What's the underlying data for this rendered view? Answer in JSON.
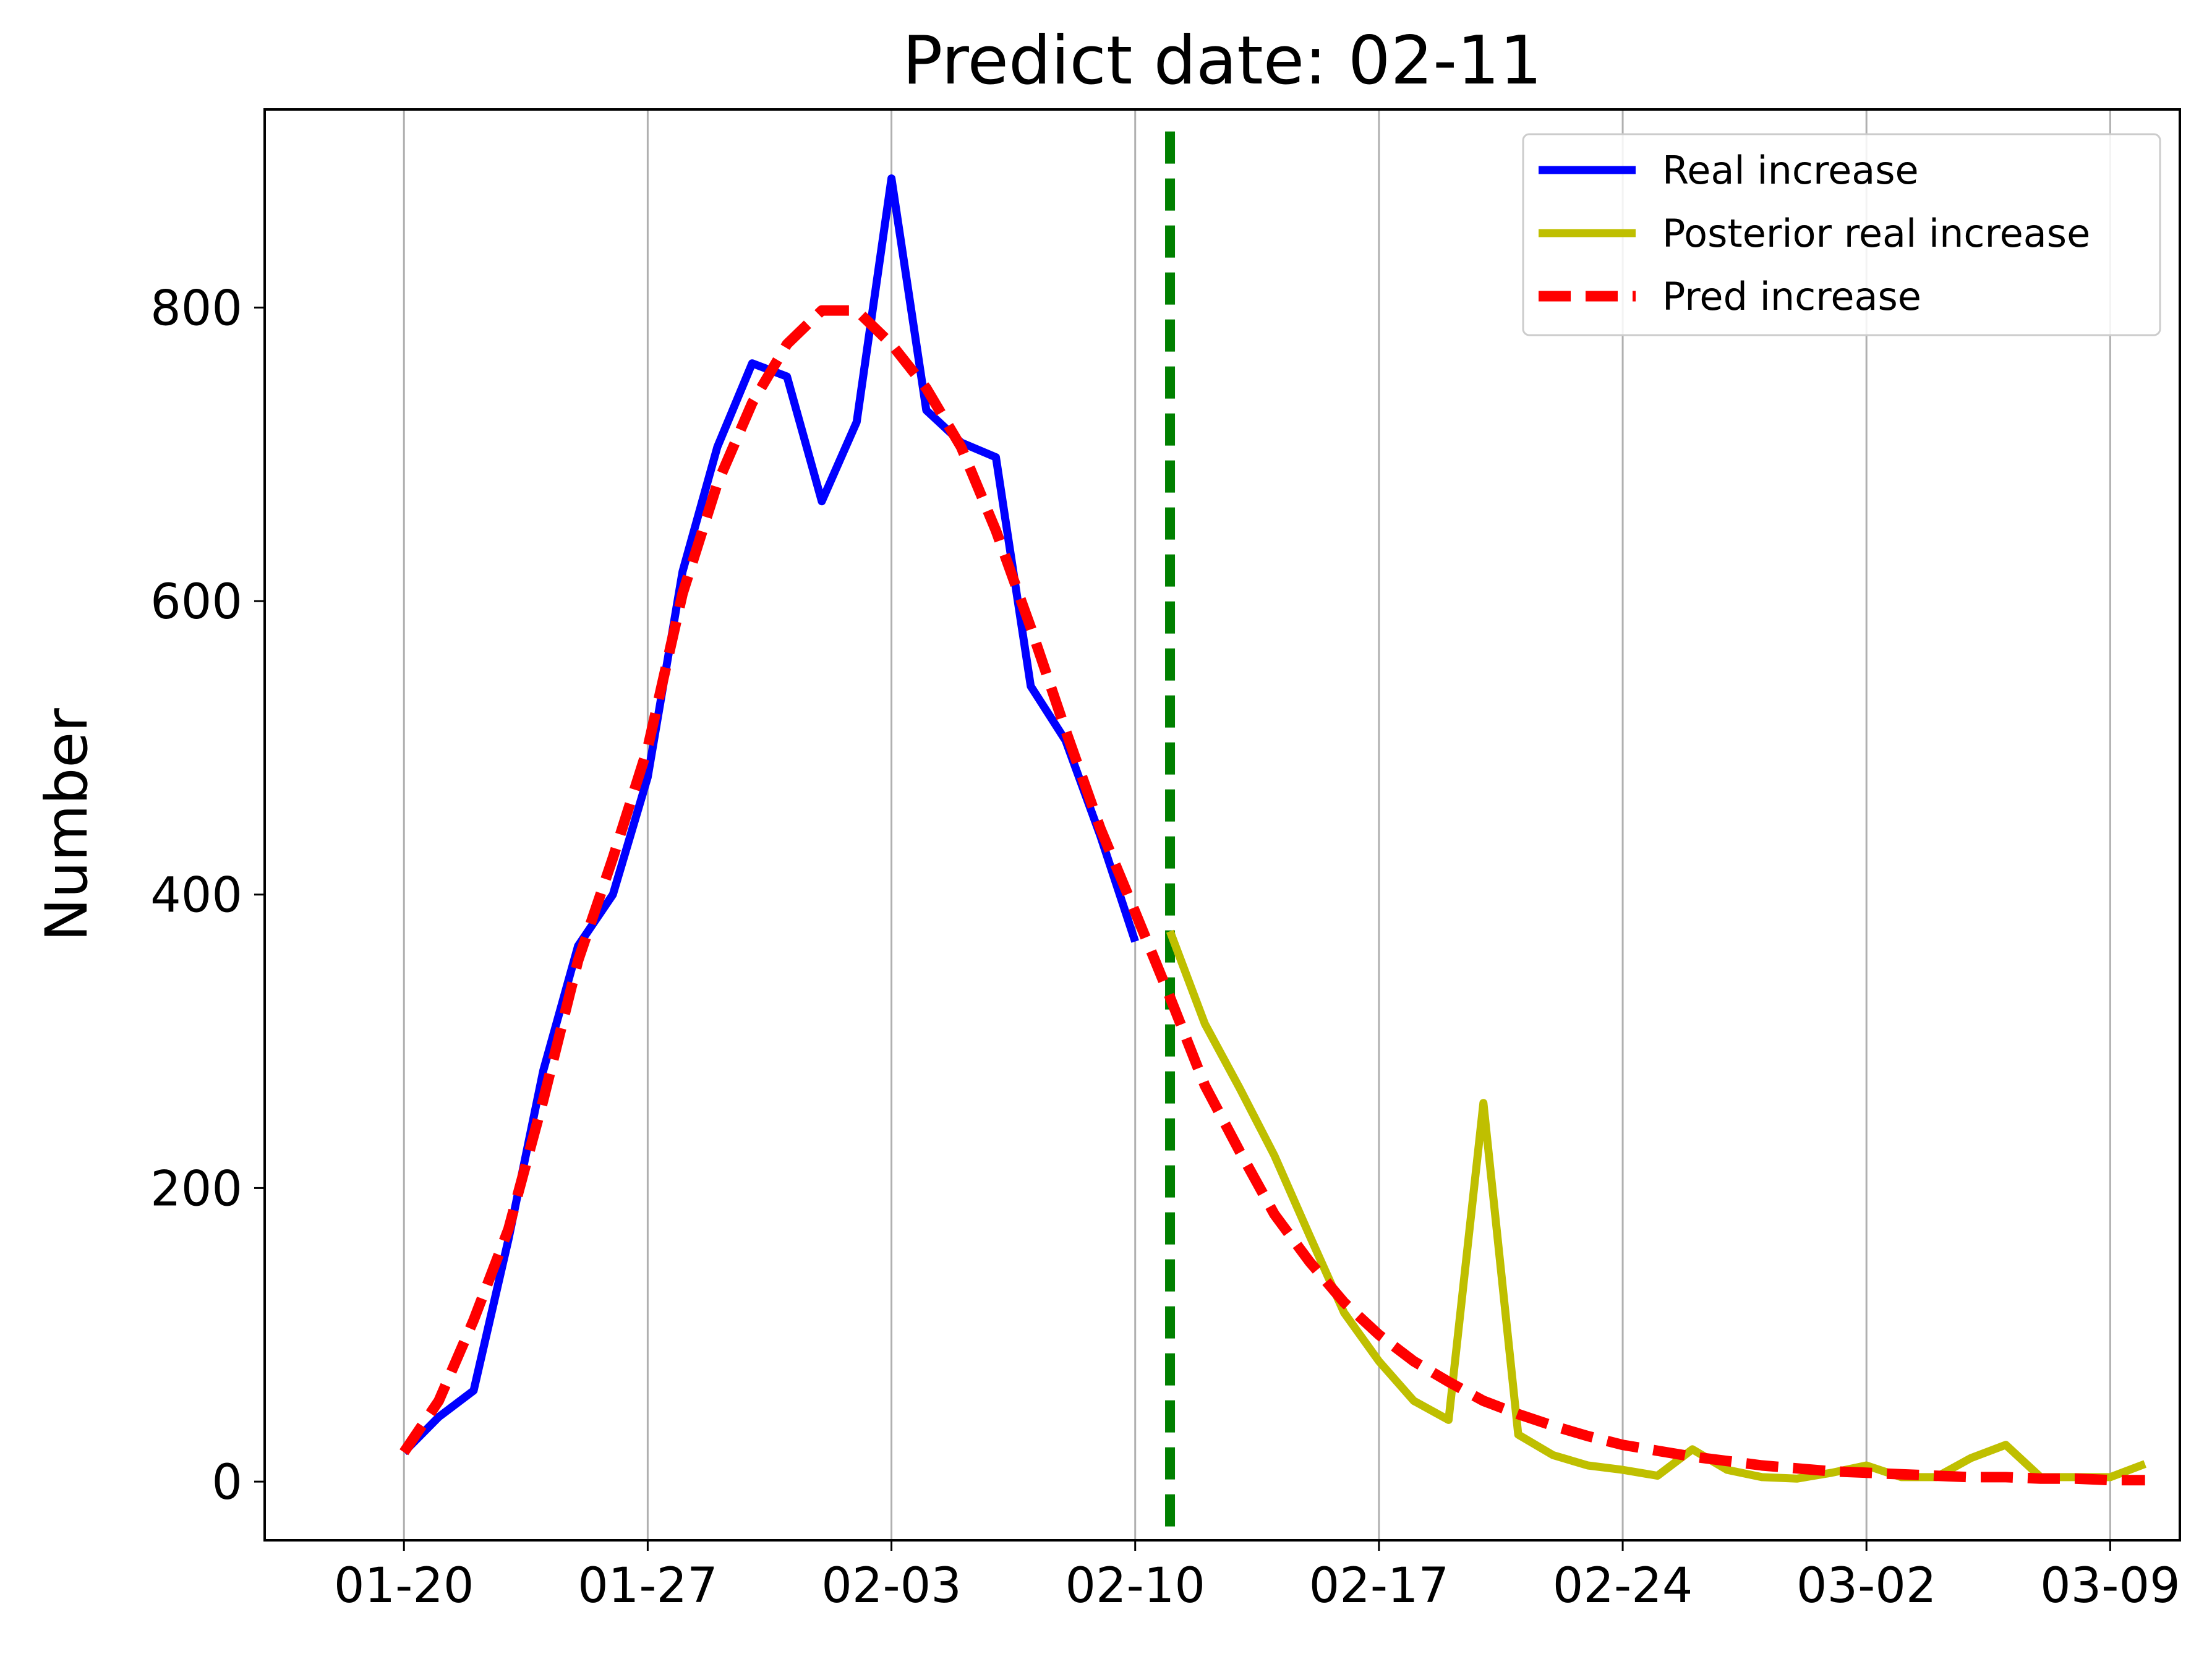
{
  "chart_data": {
    "type": "line",
    "title": "Predict date: 02-11",
    "xlabel": "",
    "ylabel": "Number",
    "x_start": "01-20",
    "x_step_days": 1,
    "xlim": [
      "01-16",
      "03-11"
    ],
    "ylim": [
      -40,
      935
    ],
    "x_ticks": [
      "01-20",
      "01-27",
      "02-03",
      "02-10",
      "02-17",
      "02-24",
      "03-02",
      "03-09"
    ],
    "y_ticks": [
      0,
      200,
      400,
      600,
      800
    ],
    "grid": "vertical",
    "legend_position": "top-right",
    "predict_marker": {
      "date": "02-11",
      "color": "#008000",
      "style": "dashed"
    },
    "series": [
      {
        "name": "Real increase",
        "color": "#0000ff",
        "style": "solid",
        "start": "01-20",
        "values": [
          20,
          44,
          62,
          165,
          280,
          365,
          400,
          480,
          620,
          705,
          762,
          753,
          668,
          722,
          888,
          730,
          708,
          698,
          542,
          505,
          440,
          368
        ]
      },
      {
        "name": "Posterior real increase",
        "color": "#bfbf00",
        "style": "solid",
        "start": "02-11",
        "values": [
          375,
          312,
          268,
          222,
          168,
          115,
          82,
          55,
          42,
          258,
          32,
          18,
          11,
          8,
          4,
          22,
          8,
          3,
          2,
          6,
          11,
          3,
          3,
          16,
          25,
          3,
          3,
          3,
          12
        ]
      },
      {
        "name": "Pred increase",
        "color": "#ff0000",
        "style": "dashed",
        "start": "01-20",
        "values": [
          20,
          55,
          110,
          172,
          260,
          355,
          425,
          500,
          605,
          680,
          735,
          775,
          798,
          798,
          775,
          745,
          705,
          648,
          582,
          512,
          445,
          388,
          330,
          270,
          225,
          182,
          150,
          122,
          100,
          82,
          68,
          55,
          46,
          38,
          31,
          25,
          21,
          17,
          14,
          11,
          9,
          7,
          6,
          5,
          4,
          3,
          3,
          2,
          2,
          1,
          1
        ]
      }
    ]
  }
}
